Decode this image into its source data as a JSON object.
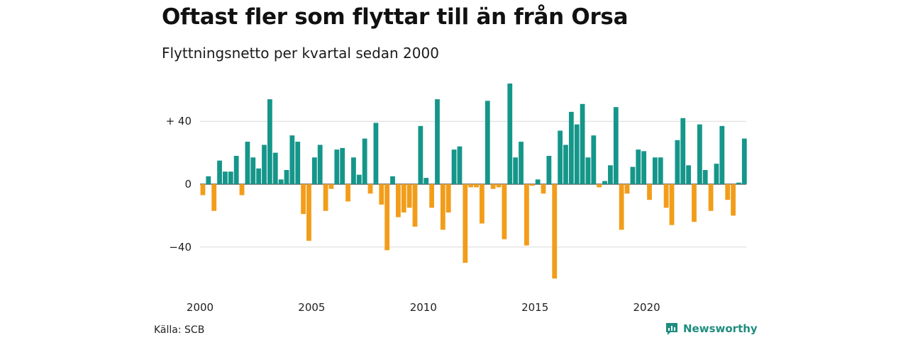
{
  "header": {
    "title": "Oftast fler som flyttar till än från Orsa",
    "subtitle": "Flyttningsnetto per kvartal sedan 2000"
  },
  "footer": {
    "source": "Källa: SCB",
    "brand": "Newsworthy"
  },
  "colors": {
    "positive": "#15968a",
    "negative": "#f29d1a",
    "grid": "#d9d9d9",
    "brand": "#1e8c7f"
  },
  "chart_data": {
    "type": "bar",
    "title": "Oftast fler som flyttar till än från Orsa",
    "subtitle": "Flyttningsnetto per kvartal sedan 2000",
    "xlabel": "",
    "ylabel": "",
    "ylim": [
      -64,
      64
    ],
    "yticks": [
      {
        "value": 40,
        "label": "+ 40"
      },
      {
        "value": 0,
        "label": "0"
      },
      {
        "value": -40,
        "label": "−40"
      }
    ],
    "xticks": [
      {
        "year": 2000,
        "label": "2000"
      },
      {
        "year": 2005,
        "label": "2005"
      },
      {
        "year": 2010,
        "label": "2010"
      },
      {
        "year": 2015,
        "label": "2015"
      },
      {
        "year": 2020,
        "label": "2020"
      }
    ],
    "grid": true,
    "start": "2000 Q1",
    "values": [
      -7,
      5,
      -17,
      15,
      8,
      8,
      18,
      -7,
      27,
      17,
      10,
      25,
      54,
      20,
      3,
      9,
      31,
      27,
      -19,
      -36,
      17,
      25,
      -17,
      -3,
      22,
      23,
      -11,
      17,
      6,
      29,
      -6,
      39,
      -13,
      -42,
      5,
      -21,
      -18,
      -15,
      -27,
      37,
      4,
      -15,
      54,
      -29,
      -18,
      22,
      24,
      -50,
      -2,
      -2,
      -25,
      53,
      -3,
      -2,
      -35,
      64,
      17,
      27,
      -39,
      -1,
      3,
      -6,
      18,
      -60,
      34,
      25,
      46,
      38,
      51,
      17,
      31,
      -2,
      2,
      12,
      49,
      -29,
      -6,
      11,
      22,
      21,
      -10,
      17,
      17,
      -15,
      -26,
      28,
      42,
      12,
      -24,
      38,
      9,
      -17,
      13,
      37,
      -10,
      -20,
      1,
      29
    ]
  }
}
